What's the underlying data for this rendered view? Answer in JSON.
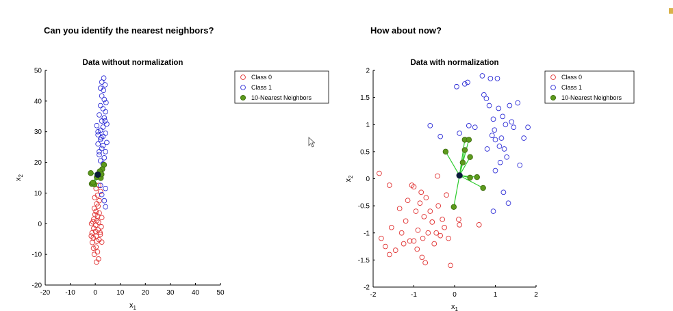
{
  "headings": {
    "left": "Can you identify the nearest neighbors?",
    "right": "How about now?"
  },
  "colors": {
    "class0": "#e03030",
    "class1": "#2c2cd6",
    "neighbor_fill": "#5c9a1c",
    "neighbor_edge": "#3f6d10",
    "query": "#0a1a3a",
    "link": "#2ecc2e"
  },
  "legend": [
    "Class 0",
    "Class 1",
    "10-Nearest Neighbors"
  ],
  "chart_data": [
    {
      "type": "scatter",
      "title": "Data without normalization",
      "xlabel": "x1",
      "ylabel": "x2",
      "xlim": [
        -20,
        50
      ],
      "ylim": [
        -20,
        50
      ],
      "xticks": [
        -20,
        -10,
        0,
        10,
        20,
        30,
        40,
        50
      ],
      "yticks": [
        -20,
        -10,
        0,
        10,
        20,
        30,
        40,
        50
      ],
      "legend_position": "top-right",
      "query": [
        1,
        16
      ],
      "series": [
        {
          "name": "Class 0",
          "points": [
            [
              0.5,
              -12.5
            ],
            [
              1.3,
              -11.5
            ],
            [
              -0.4,
              -10
            ],
            [
              0.9,
              -9.2
            ],
            [
              -0.7,
              -8
            ],
            [
              0.3,
              -7.6
            ],
            [
              -1.2,
              -6.1
            ],
            [
              0.6,
              -5.7
            ],
            [
              1.5,
              -5.2
            ],
            [
              -0.8,
              -4.6
            ],
            [
              0.4,
              -4.1
            ],
            [
              2,
              -3.5
            ],
            [
              -1.3,
              -3
            ],
            [
              0.1,
              -2.5
            ],
            [
              1.1,
              -2
            ],
            [
              -0.6,
              -1.5
            ],
            [
              2.4,
              -1
            ],
            [
              0.2,
              -0.5
            ],
            [
              -1.5,
              0
            ],
            [
              1.3,
              0.5
            ],
            [
              0.6,
              1
            ],
            [
              -0.6,
              1.5
            ],
            [
              2.6,
              2
            ],
            [
              0.9,
              2.5
            ],
            [
              -0.1,
              3
            ],
            [
              1.6,
              3.5
            ],
            [
              0.3,
              4
            ],
            [
              -0.4,
              5
            ],
            [
              1.1,
              5.7
            ],
            [
              0.6,
              6.5
            ],
            [
              1.6,
              7.5
            ],
            [
              -0.2,
              8.5
            ],
            [
              0.9,
              9.3
            ],
            [
              2.1,
              10.5
            ],
            [
              0.3,
              11.5
            ],
            [
              1.4,
              12.5
            ],
            [
              -1.6,
              -4
            ],
            [
              2.6,
              -6
            ],
            [
              -0.9,
              0.6
            ],
            [
              1.9,
              -2.9
            ]
          ]
        },
        {
          "name": "Class 1",
          "points": [
            [
              3.4,
              47.5
            ],
            [
              2.6,
              46.2
            ],
            [
              3.9,
              45.3
            ],
            [
              2.1,
              44.2
            ],
            [
              3.3,
              43.5
            ],
            [
              2.6,
              41.7
            ],
            [
              3.6,
              40.5
            ],
            [
              4.3,
              39.5
            ],
            [
              2.1,
              38.5
            ],
            [
              3.1,
              37.5
            ],
            [
              4.1,
              36.5
            ],
            [
              1.6,
              35.5
            ],
            [
              3.6,
              34.5
            ],
            [
              2.6,
              33.5
            ],
            [
              4.6,
              32.5
            ],
            [
              0.6,
              32
            ],
            [
              3.1,
              31.5
            ],
            [
              2.1,
              30.5
            ],
            [
              4.1,
              29.5
            ],
            [
              1.1,
              29
            ],
            [
              3.1,
              28.5
            ],
            [
              2.1,
              27.5
            ],
            [
              4.6,
              26.5
            ],
            [
              1.1,
              26
            ],
            [
              3.1,
              25.5
            ],
            [
              2.6,
              24.5
            ],
            [
              4.1,
              23.5
            ],
            [
              1.6,
              22.5
            ],
            [
              3.6,
              21.5
            ],
            [
              2.1,
              20.5
            ],
            [
              3.1,
              19.5
            ],
            [
              1.6,
              23.5
            ],
            [
              4.1,
              11.5
            ],
            [
              2.6,
              9.5
            ],
            [
              3.6,
              7.5
            ],
            [
              4.1,
              5.5
            ],
            [
              2.1,
              12.5
            ],
            [
              1.1,
              30
            ],
            [
              3.9,
              33.5
            ],
            [
              2.4,
              28
            ]
          ]
        },
        {
          "name": "10-Nearest Neighbors",
          "points": [
            [
              -1.8,
              16.5
            ],
            [
              3.5,
              19.2
            ],
            [
              2.8,
              17.8
            ],
            [
              -1.4,
              13
            ],
            [
              0.6,
              15.2
            ],
            [
              2.2,
              14.9
            ],
            [
              -0.3,
              12.8
            ],
            [
              1.8,
              17.1
            ],
            [
              -0.9,
              13.4
            ],
            [
              2.5,
              16.1
            ]
          ]
        }
      ]
    },
    {
      "type": "scatter",
      "title": "Data with normalization",
      "xlabel": "x1",
      "ylabel": "x2",
      "xlim": [
        -2,
        2
      ],
      "ylim": [
        -2,
        2
      ],
      "xticks": [
        -2,
        -1,
        0,
        1,
        2
      ],
      "yticks": [
        -2,
        -1.5,
        -1,
        -0.5,
        0,
        0.5,
        1,
        1.5,
        2
      ],
      "legend_position": "top-right",
      "query": [
        0.12,
        0.06
      ],
      "series": [
        {
          "name": "Class 0",
          "points": [
            [
              -1.85,
              0.1
            ],
            [
              -1.6,
              -0.12
            ],
            [
              -1.8,
              -1.1
            ],
            [
              -1.7,
              -1.25
            ],
            [
              -1.55,
              -0.9
            ],
            [
              -1.45,
              -1.32
            ],
            [
              -1.35,
              -0.55
            ],
            [
              -1.3,
              -1.0
            ],
            [
              -1.25,
              -1.2
            ],
            [
              -1.2,
              -0.78
            ],
            [
              -1.15,
              -0.4
            ],
            [
              -1.1,
              -1.15
            ],
            [
              -1.05,
              -0.12
            ],
            [
              -1.0,
              -0.15
            ],
            [
              -0.95,
              -0.6
            ],
            [
              -0.92,
              -1.3
            ],
            [
              -0.9,
              -0.95
            ],
            [
              -0.85,
              -0.45
            ],
            [
              -0.82,
              -0.25
            ],
            [
              -0.8,
              -1.45
            ],
            [
              -0.78,
              -1.1
            ],
            [
              -0.75,
              -0.7
            ],
            [
              -0.72,
              -1.55
            ],
            [
              -0.7,
              -0.35
            ],
            [
              -0.65,
              -1.0
            ],
            [
              -0.6,
              -0.6
            ],
            [
              -0.55,
              -0.8
            ],
            [
              -0.5,
              -1.2
            ],
            [
              -0.45,
              -1.0
            ],
            [
              -0.42,
              0.05
            ],
            [
              -0.4,
              -0.5
            ],
            [
              -0.35,
              -1.05
            ],
            [
              -0.3,
              -0.75
            ],
            [
              -0.25,
              -0.9
            ],
            [
              -0.2,
              -0.3
            ],
            [
              -0.15,
              -1.1
            ],
            [
              -0.1,
              -1.6
            ],
            [
              0.1,
              -0.75
            ],
            [
              0.12,
              -0.85
            ],
            [
              0.6,
              -0.85
            ],
            [
              -1.6,
              -1.4
            ],
            [
              -1.0,
              -1.15
            ]
          ]
        },
        {
          "name": "Class 1",
          "points": [
            [
              -0.6,
              0.98
            ],
            [
              -0.35,
              0.78
            ],
            [
              0.05,
              1.7
            ],
            [
              0.12,
              0.84
            ],
            [
              0.25,
              1.75
            ],
            [
              0.32,
              1.78
            ],
            [
              0.35,
              0.98
            ],
            [
              0.5,
              0.95
            ],
            [
              0.68,
              1.9
            ],
            [
              0.72,
              1.55
            ],
            [
              0.78,
              1.48
            ],
            [
              0.85,
              1.35
            ],
            [
              0.88,
              1.85
            ],
            [
              0.92,
              0.8
            ],
            [
              0.95,
              1.1
            ],
            [
              0.98,
              0.9
            ],
            [
              1.0,
              0.72
            ],
            [
              1.05,
              1.85
            ],
            [
              1.08,
              1.3
            ],
            [
              1.1,
              0.6
            ],
            [
              1.12,
              0.3
            ],
            [
              1.15,
              0.75
            ],
            [
              1.18,
              1.15
            ],
            [
              1.2,
              -0.25
            ],
            [
              1.22,
              0.55
            ],
            [
              1.25,
              1.0
            ],
            [
              1.28,
              0.4
            ],
            [
              1.32,
              -0.45
            ],
            [
              1.35,
              1.35
            ],
            [
              1.4,
              1.05
            ],
            [
              1.45,
              0.95
            ],
            [
              1.55,
              1.4
            ],
            [
              1.6,
              0.25
            ],
            [
              1.7,
              0.75
            ],
            [
              1.8,
              0.95
            ],
            [
              0.8,
              0.55
            ],
            [
              1.0,
              0.15
            ],
            [
              0.95,
              -0.6
            ]
          ]
        },
        {
          "name": "10-Nearest Neighbors",
          "points": [
            [
              -0.22,
              0.5
            ],
            [
              0.25,
              0.72
            ],
            [
              0.25,
              0.53
            ],
            [
              0.35,
              0.72
            ],
            [
              0.2,
              0.3
            ],
            [
              0.38,
              0.4
            ],
            [
              0.38,
              0.02
            ],
            [
              0.55,
              0.03
            ],
            [
              0.7,
              -0.17
            ],
            [
              -0.02,
              -0.52
            ]
          ]
        }
      ]
    }
  ]
}
